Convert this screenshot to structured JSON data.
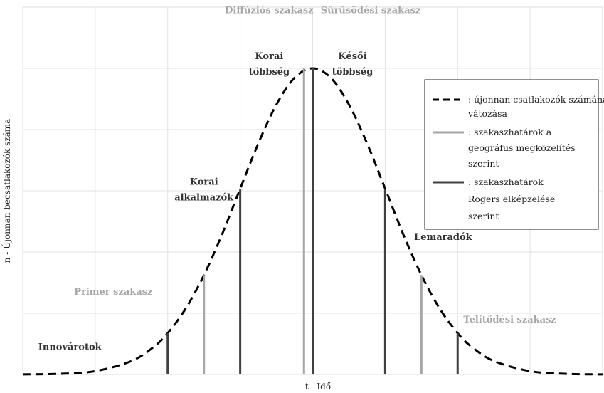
{
  "chart_data": {
    "type": "line",
    "title": "",
    "xlabel": "t - Idő",
    "ylabel": "n - Újonnan becsatlakozók száma",
    "grid": true,
    "x_ticks_labeled": false,
    "y_ticks_labeled": false,
    "series": [
      {
        "name": ": újonnan csatlakozók számának vátozása",
        "style": "dashed",
        "color": "#000000",
        "x": [
          -4.0,
          -3.5,
          -3.0,
          -2.5,
          -2.2,
          -2.0,
          -1.75,
          -1.5,
          -1.25,
          -1.0,
          -0.75,
          -0.5,
          -0.25,
          0.0,
          0.25,
          0.5,
          0.75,
          1.0,
          1.25,
          1.5,
          1.75,
          2.0,
          2.2,
          2.5,
          3.0,
          3.5,
          4.0
        ],
        "y": [
          0.0003,
          0.002,
          0.011,
          0.044,
          0.089,
          0.135,
          0.216,
          0.325,
          0.458,
          0.607,
          0.755,
          0.882,
          0.969,
          1.0,
          0.969,
          0.882,
          0.755,
          0.607,
          0.458,
          0.325,
          0.216,
          0.135,
          0.089,
          0.044,
          0.011,
          0.002,
          0.0003
        ]
      }
    ],
    "boundary_lines": {
      "geographer": {
        "name": ": szakaszhatárok a geográfus megközelítés szerint",
        "color": "#a6a6a6",
        "x": [
          -1.5,
          -0.12,
          1.5
        ],
        "y": [
          0.325,
          1.0,
          0.325
        ]
      },
      "rogers": {
        "name": ": szakaszhatárok Rogers elképzelése szerint",
        "color": "#404040",
        "x": [
          -2.0,
          -1.0,
          0.0,
          1.0,
          2.0
        ],
        "y": [
          0.135,
          0.607,
          1.0,
          0.607,
          0.135
        ]
      }
    },
    "xlim": [
      -4.0,
      4.0
    ],
    "ylim": [
      0.0,
      1.2
    ],
    "legend_position": "top-right",
    "annotations": {
      "dark": [
        {
          "text": "Innovárotok",
          "x": -3.35,
          "y": 0.08
        },
        {
          "text": "Korai alkalmazók",
          "x": -1.5,
          "y": 0.62
        },
        {
          "text": "Korai többség",
          "x": -0.6,
          "y": 1.03
        },
        {
          "text": "Késői többség",
          "x": 0.55,
          "y": 1.03
        },
        {
          "text": "Lemaradók",
          "x": 1.8,
          "y": 0.44
        }
      ],
      "light": [
        {
          "text": "Primer szakasz",
          "x": -2.75,
          "y": 0.26
        },
        {
          "text": "Diffúziós szakasz",
          "x": -0.6,
          "y": 1.18
        },
        {
          "text": "Sűrűsödési szakasz",
          "x": 0.8,
          "y": 1.18
        },
        {
          "text": "Telítődési szakasz",
          "x": 2.72,
          "y": 0.17
        }
      ]
    }
  }
}
